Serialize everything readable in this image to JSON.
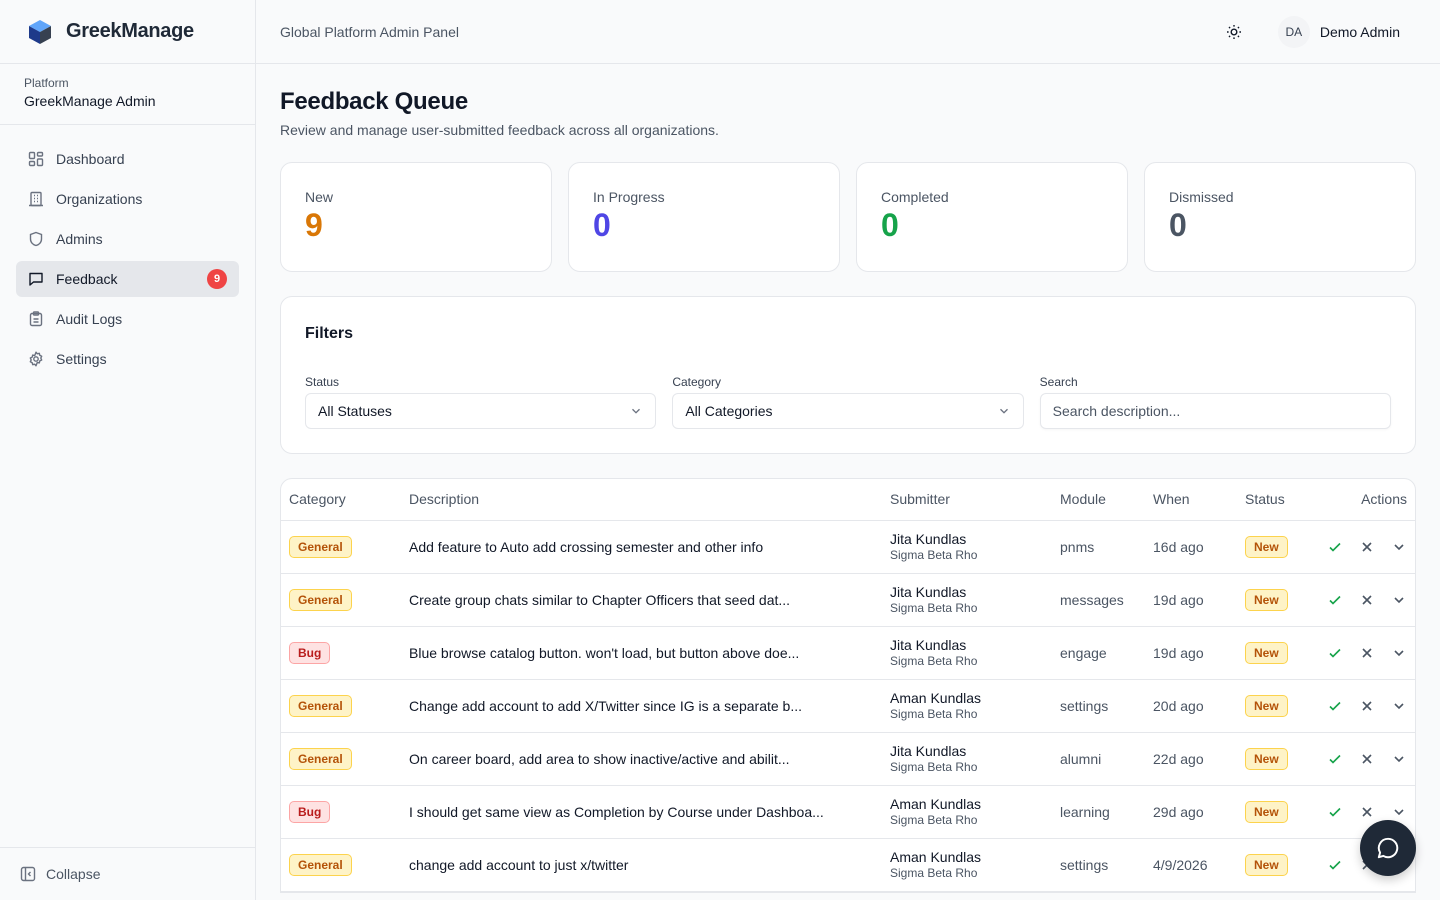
{
  "brand": {
    "name": "GreekManage"
  },
  "platform": {
    "label": "Platform",
    "name": "GreekManage Admin"
  },
  "nav": [
    {
      "label": "Dashboard",
      "icon": "dashboard-icon"
    },
    {
      "label": "Organizations",
      "icon": "building-icon"
    },
    {
      "label": "Admins",
      "icon": "shield-icon"
    },
    {
      "label": "Feedback",
      "icon": "message-square-icon",
      "badge": "9",
      "active": true
    },
    {
      "label": "Audit Logs",
      "icon": "clipboard-icon"
    },
    {
      "label": "Settings",
      "icon": "gear-icon"
    }
  ],
  "collapse_label": "Collapse",
  "header": {
    "title": "Global Platform Admin Panel",
    "user_initials": "DA",
    "user_name": "Demo Admin"
  },
  "page": {
    "title": "Feedback Queue",
    "subtitle": "Review and manage user-submitted feedback across all organizations."
  },
  "stats": [
    {
      "label": "New",
      "value": "9",
      "color": "#d97706"
    },
    {
      "label": "In Progress",
      "value": "0",
      "color": "#4f46e5"
    },
    {
      "label": "Completed",
      "value": "0",
      "color": "#16a34a"
    },
    {
      "label": "Dismissed",
      "value": "0",
      "color": "#4b5563"
    }
  ],
  "filters": {
    "title": "Filters",
    "status_label": "Status",
    "status_value": "All Statuses",
    "category_label": "Category",
    "category_value": "All Categories",
    "search_label": "Search",
    "search_placeholder": "Search description..."
  },
  "table": {
    "headers": [
      "Category",
      "Description",
      "Submitter",
      "Module",
      "When",
      "Status",
      "Actions"
    ],
    "rows": [
      {
        "category": "General",
        "description": "Add feature to Auto add crossing semester and other info",
        "submitter": "Jita Kundlas",
        "org": "Sigma Beta Rho",
        "module": "pnms",
        "when": "16d ago",
        "status": "New"
      },
      {
        "category": "General",
        "description": "Create group chats similar to Chapter Officers that seed dat...",
        "submitter": "Jita Kundlas",
        "org": "Sigma Beta Rho",
        "module": "messages",
        "when": "19d ago",
        "status": "New"
      },
      {
        "category": "Bug",
        "description": "Blue browse catalog button. won't load, but button above doe...",
        "submitter": "Jita Kundlas",
        "org": "Sigma Beta Rho",
        "module": "engage",
        "when": "19d ago",
        "status": "New"
      },
      {
        "category": "General",
        "description": "Change add account to add X/Twitter since IG is a separate b...",
        "submitter": "Aman Kundlas",
        "org": "Sigma Beta Rho",
        "module": "settings",
        "when": "20d ago",
        "status": "New"
      },
      {
        "category": "General",
        "description": "On career board, add area to show inactive/active and abilit...",
        "submitter": "Jita Kundlas",
        "org": "Sigma Beta Rho",
        "module": "alumni",
        "when": "22d ago",
        "status": "New"
      },
      {
        "category": "Bug",
        "description": "I should get same view as Completion by Course under Dashboa...",
        "submitter": "Aman Kundlas",
        "org": "Sigma Beta Rho",
        "module": "learning",
        "when": "29d ago",
        "status": "New"
      },
      {
        "category": "General",
        "description": "change add account to just x/twitter",
        "submitter": "Aman Kundlas",
        "org": "Sigma Beta Rho",
        "module": "settings",
        "when": "4/9/2026",
        "status": "New"
      }
    ]
  }
}
